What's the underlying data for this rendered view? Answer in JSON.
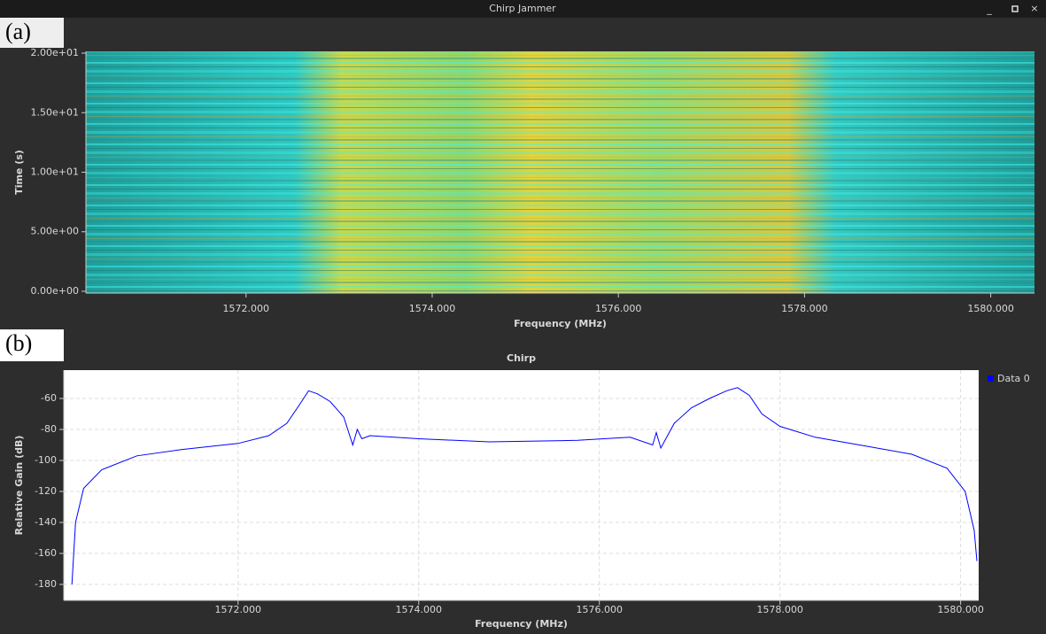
{
  "window": {
    "title": "Chirp Jammer"
  },
  "panel_labels": [
    "(a)",
    "(b)"
  ],
  "chart_data": [
    {
      "type": "waterfall",
      "xlabel": "Frequency (MHz)",
      "ylabel": "Time (s)",
      "xlim": [
        1570.28,
        1580.47
      ],
      "ylim": [
        -0.15,
        20.15
      ],
      "xticks": [
        {
          "value": 1572,
          "label": "1572.000"
        },
        {
          "value": 1574,
          "label": "1574.000"
        },
        {
          "value": 1576,
          "label": "1576.000"
        },
        {
          "value": 1578,
          "label": "1578.000"
        },
        {
          "value": 1580,
          "label": "1580.000"
        }
      ],
      "yticks": [
        {
          "value": 0,
          "label": "0.00e+00"
        },
        {
          "value": 5,
          "label": "5.00e+00"
        },
        {
          "value": 10,
          "label": "1.00e+01"
        },
        {
          "value": 15,
          "label": "1.50e+01"
        },
        {
          "value": 20,
          "label": "2.00e+01"
        }
      ],
      "grid": false
    },
    {
      "type": "line",
      "title": "Chirp",
      "xlabel": "Frequency (MHz)",
      "ylabel": "Relative Gain (dB)",
      "xlim": [
        1570.07,
        1580.2
      ],
      "ylim": [
        -190.3,
        -41.7
      ],
      "xticks": [
        {
          "value": 1572,
          "label": "1572.000"
        },
        {
          "value": 1574,
          "label": "1574.000"
        },
        {
          "value": 1576,
          "label": "1576.000"
        },
        {
          "value": 1578,
          "label": "1578.000"
        },
        {
          "value": 1580,
          "label": "1580.000"
        }
      ],
      "yticks": [
        -60,
        -80,
        -100,
        -120,
        -140,
        -160,
        -180
      ],
      "grid": true,
      "legend": "right",
      "x": [
        1570.16,
        1570.2,
        1570.29,
        1570.49,
        1570.88,
        1571.37,
        1572.0,
        1572.34,
        1572.54,
        1572.68,
        1572.78,
        1572.88,
        1573.02,
        1573.17,
        1573.27,
        1573.32,
        1573.37,
        1573.46,
        1574.0,
        1574.78,
        1575.76,
        1576.34,
        1576.59,
        1576.63,
        1576.68,
        1576.83,
        1577.02,
        1577.22,
        1577.41,
        1577.53,
        1577.66,
        1577.8,
        1578.0,
        1578.39,
        1578.88,
        1579.46,
        1579.85,
        1580.05,
        1580.15,
        1580.18
      ],
      "series": [
        {
          "name": "Data 0",
          "color": "#0000ff",
          "values": [
            -180,
            -140,
            -118,
            -106,
            -97,
            -93,
            -89,
            -84,
            -76,
            -64,
            -55,
            -57,
            -62,
            -72,
            -90,
            -80,
            -86,
            -84,
            -86,
            -88,
            -87,
            -85,
            -90,
            -82,
            -92,
            -76,
            -66,
            -60,
            -55,
            -53,
            -58,
            -70,
            -78,
            -85,
            -90,
            -96,
            -105,
            -120,
            -145,
            -165
          ]
        }
      ]
    }
  ]
}
